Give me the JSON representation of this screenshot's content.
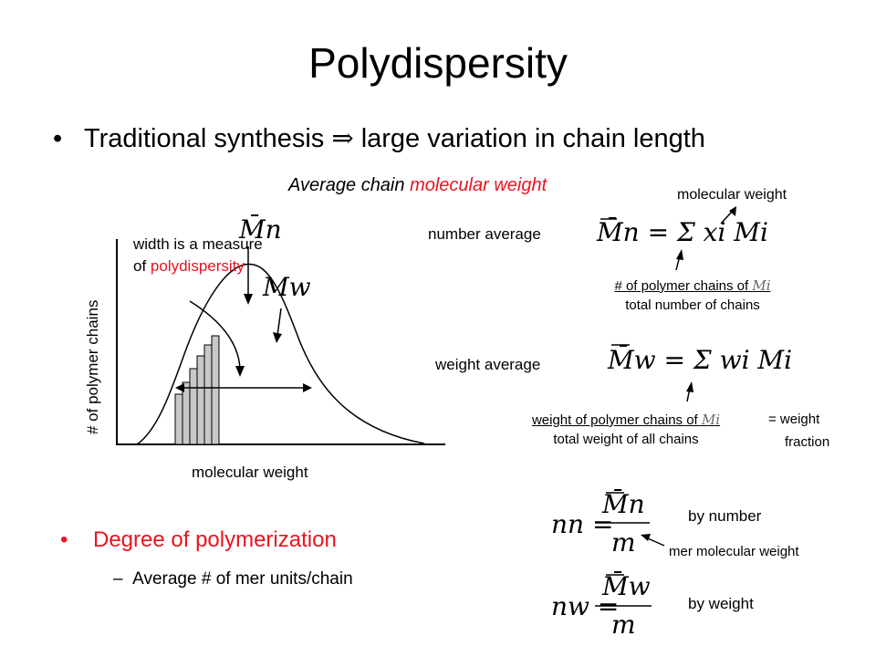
{
  "title": "Polydispersity",
  "bullet1": {
    "marker": "•",
    "text_before": "Traditional synthesis ",
    "arrow": "⇒",
    "text_after": " large variation in chain length"
  },
  "avg_heading": {
    "prefix": "Average chain ",
    "highlight": "molecular weight"
  },
  "graph": {
    "ylabel": "# of polymer chains",
    "xlabel": "molecular weight",
    "annotation_line1": "width is a measure",
    "annotation_line2_prefix": "of ",
    "annotation_line2_highlight": "polydispersity",
    "mn_symbol": "M̄n",
    "mw_symbol": "Mw"
  },
  "number_average": {
    "label": "number average",
    "equation": "M̄n = Σ xi Mi",
    "mw_note": "molecular weight",
    "frac_num_prefix": "# of polymer chains of ",
    "frac_num_var": "Mi",
    "frac_den": "total number of chains"
  },
  "weight_average": {
    "label": "weight average",
    "equation": "M̄w = Σ wi Mi",
    "frac_num_prefix": "weight of polymer chains of ",
    "frac_num_var": "Mi",
    "frac_den": "total weight of all chains",
    "eq_line1": "= weight",
    "eq_line2": "fraction"
  },
  "bullet2": {
    "marker": "•",
    "text": "Degree of polymerization",
    "sub_marker": "–",
    "sub_text": "Average # of mer units/chain"
  },
  "degree": {
    "nn_lhs": "nn =",
    "nn_num": "M̄n",
    "nn_den": "m",
    "by_number": "by number",
    "mer_note": "mer molecular weight",
    "nw_lhs": "nw =",
    "nw_num": "M̄w",
    "nw_den": "m",
    "by_weight": "by weight"
  }
}
